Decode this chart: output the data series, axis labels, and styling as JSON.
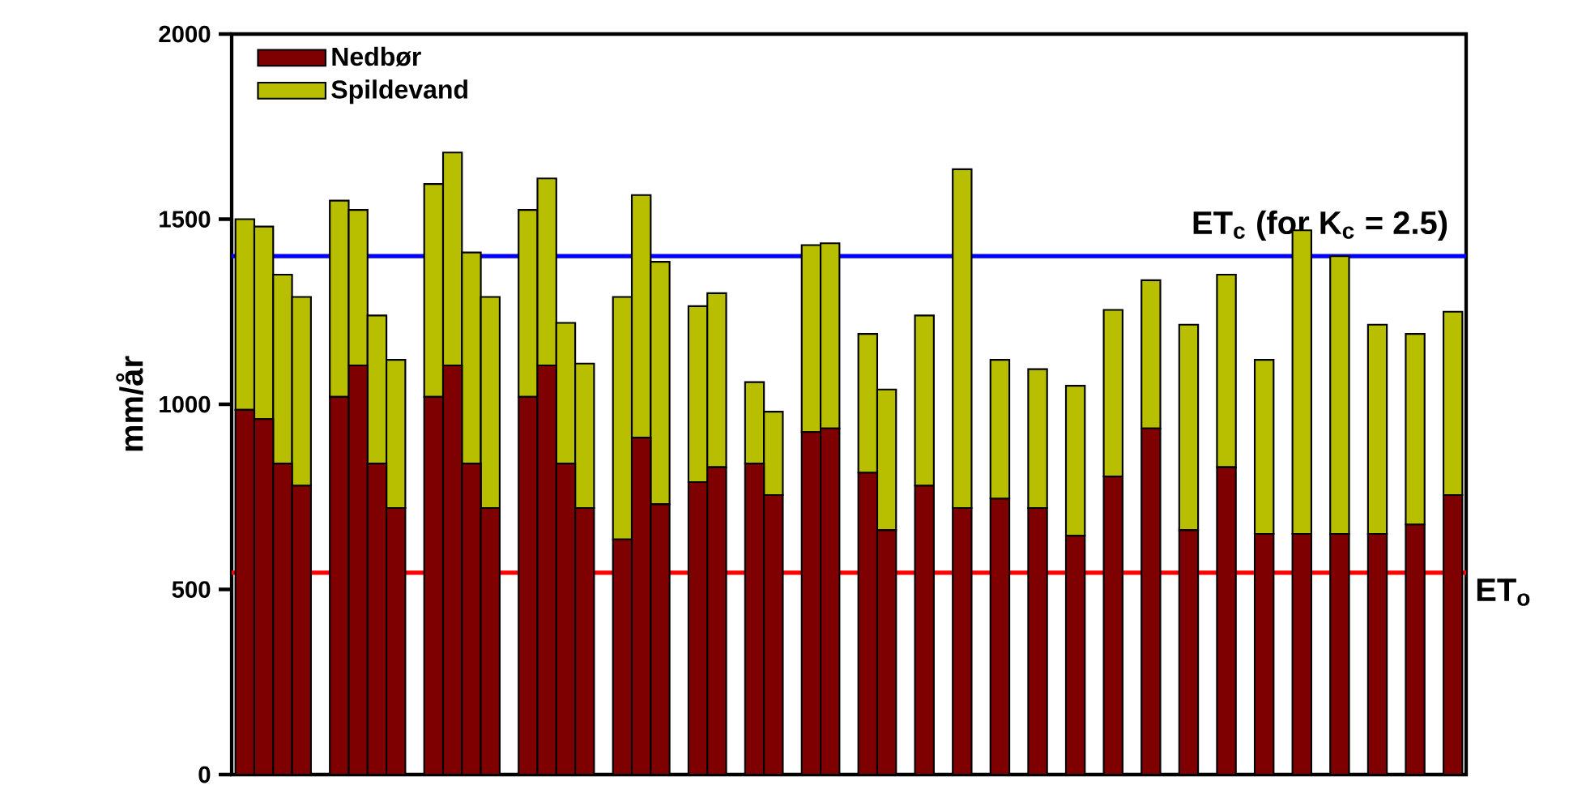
{
  "chart_data": {
    "type": "bar",
    "stacked": true,
    "ylabel": "mm/år",
    "categories": [
      null,
      null,
      null,
      null,
      null,
      null,
      null,
      null,
      null,
      null,
      null,
      null,
      null,
      null,
      null,
      null,
      null,
      null,
      null,
      null,
      null,
      null,
      null,
      null,
      null,
      null,
      null,
      null,
      null,
      null,
      null,
      null,
      null,
      null,
      null,
      null,
      null,
      null,
      null,
      null,
      null,
      null,
      null,
      null,
      null,
      null,
      null,
      null,
      null,
      null,
      null,
      null,
      null,
      null,
      null,
      null,
      null,
      null,
      null,
      null,
      null,
      null,
      null,
      null,
      null
    ],
    "series": [
      {
        "name": "Nedbør",
        "color": "#7f0000",
        "values": [
          985,
          960,
          840,
          780,
          null,
          1020,
          1105,
          840,
          720,
          null,
          1020,
          1105,
          840,
          720,
          null,
          1020,
          1105,
          840,
          720,
          null,
          635,
          910,
          730,
          null,
          790,
          830,
          null,
          840,
          755,
          null,
          925,
          935,
          null,
          815,
          660,
          null,
          780,
          null,
          720,
          null,
          745,
          null,
          720,
          null,
          645,
          null,
          805,
          null,
          935,
          null,
          660,
          null,
          830,
          null,
          650,
          null,
          650,
          null,
          650,
          null,
          650,
          null,
          675,
          null,
          755
        ]
      },
      {
        "name": "Spildevand",
        "color": "#b8be00",
        "values": [
          515,
          520,
          510,
          510,
          null,
          530,
          420,
          400,
          400,
          null,
          575,
          575,
          570,
          570,
          null,
          505,
          505,
          380,
          390,
          null,
          655,
          655,
          655,
          null,
          475,
          470,
          null,
          220,
          225,
          null,
          505,
          500,
          null,
          375,
          380,
          null,
          460,
          null,
          915,
          null,
          375,
          null,
          375,
          null,
          405,
          null,
          450,
          null,
          400,
          null,
          555,
          null,
          520,
          null,
          470,
          null,
          820,
          null,
          750,
          null,
          565,
          null,
          515,
          null,
          495
        ]
      }
    ],
    "ylim": [
      0,
      2000
    ],
    "yticks": [
      0,
      500,
      1000,
      1500,
      2000
    ],
    "tick_labels": "y",
    "legend": "top left",
    "ref_lines": [
      {
        "axis": "y",
        "value": 1400,
        "color": "#0000ff"
      },
      {
        "axis": "y",
        "value": 545,
        "label": "ET$_{o}$",
        "color": "#ff0000"
      }
    ],
    "annotations": [
      {
        "text": "ET$_{c}$ (for K$_{c}$ = 2.5)",
        "y": 1400
      }
    ]
  }
}
